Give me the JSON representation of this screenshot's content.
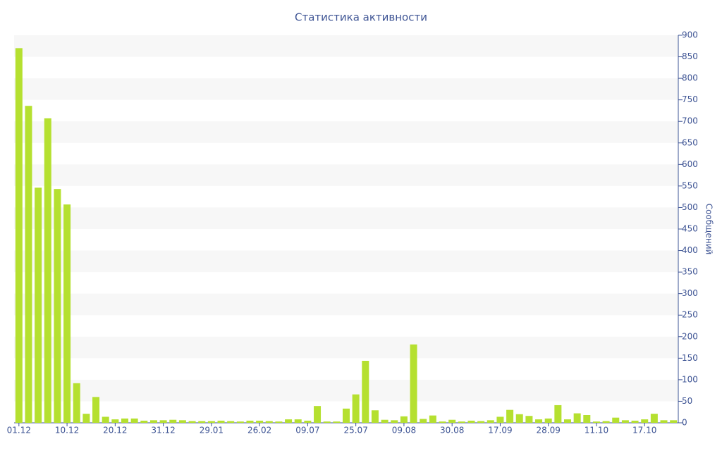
{
  "chart_data": {
    "type": "bar",
    "title": "Статистика активности",
    "y_label": "Сообщений",
    "categories": [
      "01.12",
      null,
      null,
      null,
      null,
      "10.12",
      null,
      null,
      null,
      null,
      "20.12",
      null,
      null,
      null,
      null,
      "31.12",
      null,
      null,
      null,
      null,
      "29.01",
      null,
      null,
      null,
      null,
      "26.02",
      null,
      null,
      null,
      null,
      "09.07",
      null,
      null,
      null,
      null,
      "25.07",
      null,
      null,
      null,
      null,
      "09.08",
      null,
      null,
      null,
      null,
      "30.08",
      null,
      null,
      null,
      null,
      "17.09",
      null,
      null,
      null,
      null,
      "28.09",
      null,
      null,
      null,
      null,
      "11.10",
      null,
      null,
      null,
      null,
      "17.10",
      null,
      null,
      null
    ],
    "values": [
      870,
      736,
      546,
      707,
      543,
      507,
      92,
      21,
      60,
      14,
      8,
      10,
      10,
      5,
      6,
      6,
      7,
      6,
      4,
      4,
      4,
      5,
      4,
      3,
      5,
      5,
      4,
      3,
      8,
      8,
      5,
      39,
      3,
      3,
      33,
      66,
      144,
      29,
      7,
      6,
      15,
      182,
      9,
      17,
      3,
      7,
      3,
      5,
      4,
      6,
      14,
      30,
      20,
      16,
      8,
      10,
      41,
      8,
      22,
      18,
      3,
      4,
      12,
      6,
      5,
      8,
      21,
      6,
      6
    ],
    "color": "#b5e030",
    "ylim": [
      0,
      900
    ],
    "yticks": [
      0,
      50,
      100,
      150,
      200,
      250,
      300,
      350,
      400,
      450,
      500,
      550,
      600,
      650,
      700,
      750,
      800,
      850,
      900
    ],
    "grid": true
  }
}
